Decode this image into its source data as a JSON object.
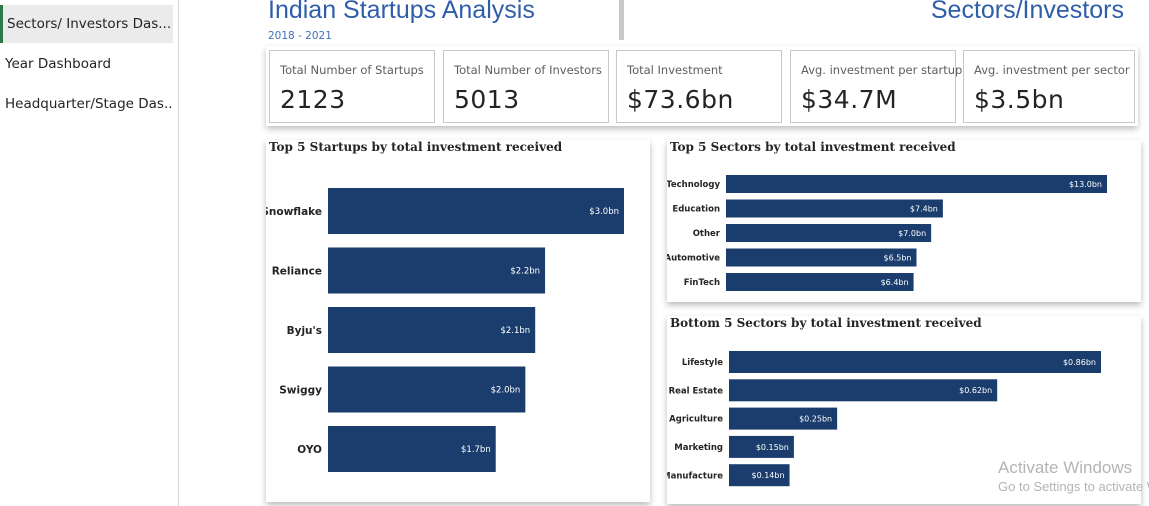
{
  "nav": {
    "items": [
      {
        "label": "Sectors/ Investors Das...",
        "active": true
      },
      {
        "label": "Year Dashboard",
        "active": false
      },
      {
        "label": "Headquarter/Stage Das...",
        "active": false
      }
    ]
  },
  "header": {
    "title": "Indian Startups Analysis",
    "subtitle": "2018 - 2021",
    "page_title": "Sectors/Investors"
  },
  "kpis": [
    {
      "label": "Total Number of Startups",
      "value": "2123"
    },
    {
      "label": "Total Number of Investors",
      "value": "5013"
    },
    {
      "label": "Total Investment",
      "value": "$73.6bn"
    },
    {
      "label": "Avg. investment per startup",
      "value": "$34.7M"
    },
    {
      "label": "Avg. investment per sector",
      "value": "$3.5bn"
    }
  ],
  "colors": {
    "bar": "#1a3d6d",
    "title": "#2f5ea8"
  },
  "chart_data": [
    {
      "type": "bar",
      "orientation": "horizontal",
      "title": "Top 5 Startups by total investment received",
      "categories": [
        "Snowflake",
        "Reliance",
        "Byju's",
        "Swiggy",
        "OYO"
      ],
      "values": [
        3.0,
        2.2,
        2.1,
        2.0,
        1.7
      ],
      "value_labels": [
        "$3.0bn",
        "$2.2bn",
        "$2.1bn",
        "$2.0bn",
        "$1.7bn"
      ],
      "unit": "bn USD",
      "xlim": [
        0,
        3.0
      ]
    },
    {
      "type": "bar",
      "orientation": "horizontal",
      "title": "Top 5 Sectors by total investment received",
      "categories": [
        "Technology",
        "Education",
        "Other",
        "Automotive",
        "FinTech"
      ],
      "values": [
        13.0,
        7.4,
        7.0,
        6.5,
        6.4
      ],
      "value_labels": [
        "$13.0bn",
        "$7.4bn",
        "$7.0bn",
        "$6.5bn",
        "$6.4bn"
      ],
      "unit": "bn USD",
      "xlim": [
        0,
        13.0
      ]
    },
    {
      "type": "bar",
      "orientation": "horizontal",
      "title": "Bottom 5 Sectors by total investment received",
      "categories": [
        "Lifestyle",
        "Real Estate",
        "Agriculture",
        "Marketing",
        "Manufacture"
      ],
      "values": [
        0.86,
        0.62,
        0.25,
        0.15,
        0.14
      ],
      "value_labels": [
        "$0.86bn",
        "$0.62bn",
        "$0.25bn",
        "$0.15bn",
        "$0.14bn"
      ],
      "unit": "bn USD",
      "xlim": [
        0,
        0.86
      ]
    }
  ],
  "watermark": {
    "line1": "Activate Windows",
    "line2": "Go to Settings to activate Windows."
  }
}
